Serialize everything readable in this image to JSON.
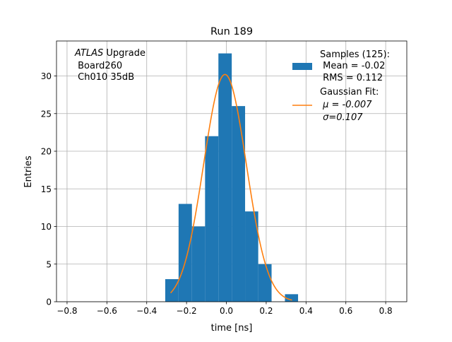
{
  "chart_data": {
    "type": "bar",
    "title": "Run 189",
    "xlabel": "time [ns]",
    "ylabel": "Entries",
    "xlim": [
      -0.853,
      0.906
    ],
    "ylim": [
      0,
      34.65
    ],
    "grid": true,
    "xticks": [
      "−0.8",
      "−0.6",
      "−0.4",
      "−0.2",
      "0.0",
      "0.2",
      "0.4",
      "0.6",
      "0.8"
    ],
    "xtick_values": [
      -0.8,
      -0.6,
      -0.4,
      -0.2,
      0,
      0.2,
      0.4,
      0.6,
      0.8
    ],
    "yticks": [
      "0",
      "5",
      "10",
      "15",
      "20",
      "25",
      "30"
    ],
    "ytick_values": [
      0,
      5,
      10,
      15,
      20,
      25,
      30
    ],
    "bin_edges": [
      -0.307,
      -0.24,
      -0.173,
      -0.107,
      -0.04,
      0.027,
      0.094,
      0.16,
      0.227,
      0.294,
      0.36
    ],
    "values": [
      3,
      13,
      10,
      22,
      33,
      26,
      12,
      5,
      0,
      1
    ],
    "bar_color": "#1f77b4",
    "fit": {
      "mu": -0.007,
      "sigma": 0.107,
      "amplitude": 30.2,
      "x_range": [
        -0.28,
        0.33
      ],
      "color": "#ff7f0e"
    },
    "annotation": {
      "italic": "ATLAS",
      "rest": " Upgrade",
      "line2": " Board260",
      "line3": " Ch010 35dB"
    },
    "legend": {
      "placement": "top-right",
      "samples": [
        "Samples (125):",
        " Mean = -0.02",
        " RMS = 0.112"
      ],
      "fit": [
        "Gaussian Fit:",
        " μ = -0.007",
        " σ=0.107"
      ]
    }
  }
}
